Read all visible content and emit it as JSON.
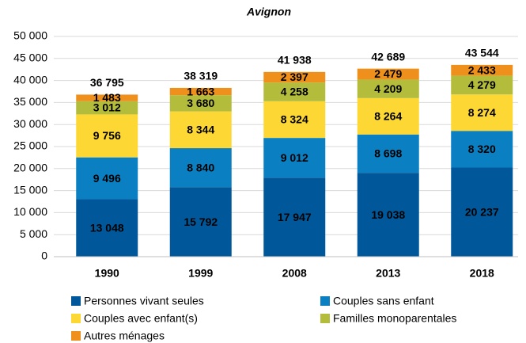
{
  "chart_data": {
    "type": "stacked_bar",
    "title": "Avignon",
    "categories": [
      "1990",
      "1999",
      "2008",
      "2013",
      "2018"
    ],
    "series": [
      {
        "name": "Personnes vivant seules",
        "color": "#00589a",
        "values": [
          13048,
          15792,
          17947,
          19038,
          20237
        ],
        "value_labels": [
          "13 048",
          "15 792",
          "17 947",
          "19 038",
          "20 237"
        ]
      },
      {
        "name": "Couples sans enfant",
        "color": "#0a80c2",
        "values": [
          9496,
          8840,
          9012,
          8698,
          8320
        ],
        "value_labels": [
          "9 496",
          "8 840",
          "9 012",
          "8 698",
          "8 320"
        ]
      },
      {
        "name": "Couples avec enfant(s)",
        "color": "#fdd835",
        "values": [
          9756,
          8344,
          8324,
          8264,
          8274
        ],
        "value_labels": [
          "9 756",
          "8 344",
          "8 324",
          "8 264",
          "8 274"
        ]
      },
      {
        "name": "Familles monoparentales",
        "color": "#b4bc3c",
        "values": [
          3012,
          3680,
          4258,
          4209,
          4279
        ],
        "value_labels": [
          "3 012",
          "3 680",
          "4 258",
          "4 209",
          "4 279"
        ]
      },
      {
        "name": "Autres ménages",
        "color": "#f0901c",
        "values": [
          1483,
          1663,
          2397,
          2479,
          2433
        ],
        "value_labels": [
          "1 483",
          "1 663",
          "2 397",
          "2 479",
          "2 433"
        ]
      }
    ],
    "totals": [
      36795,
      38319,
      41938,
      42689,
      43544
    ],
    "total_labels": [
      "36 795",
      "38 319",
      "41 938",
      "42 689",
      "43 544"
    ],
    "ylim": [
      0,
      50000
    ],
    "yticks": [
      0,
      {
        "value": 5000,
        "label": "5 000"
      },
      {
        "value": 10000,
        "label": "10 000"
      },
      {
        "value": 15000,
        "label": "15 000"
      },
      {
        "value": 20000,
        "label": "20 000"
      },
      {
        "value": 25000,
        "label": "25 000"
      },
      {
        "value": 30000,
        "label": "30 000"
      },
      {
        "value": 35000,
        "label": "35 000"
      },
      {
        "value": 40000,
        "label": "40 000"
      },
      {
        "value": 45000,
        "label": "45 000"
      },
      {
        "value": 50000,
        "label": "50 000"
      }
    ],
    "grid": true
  }
}
